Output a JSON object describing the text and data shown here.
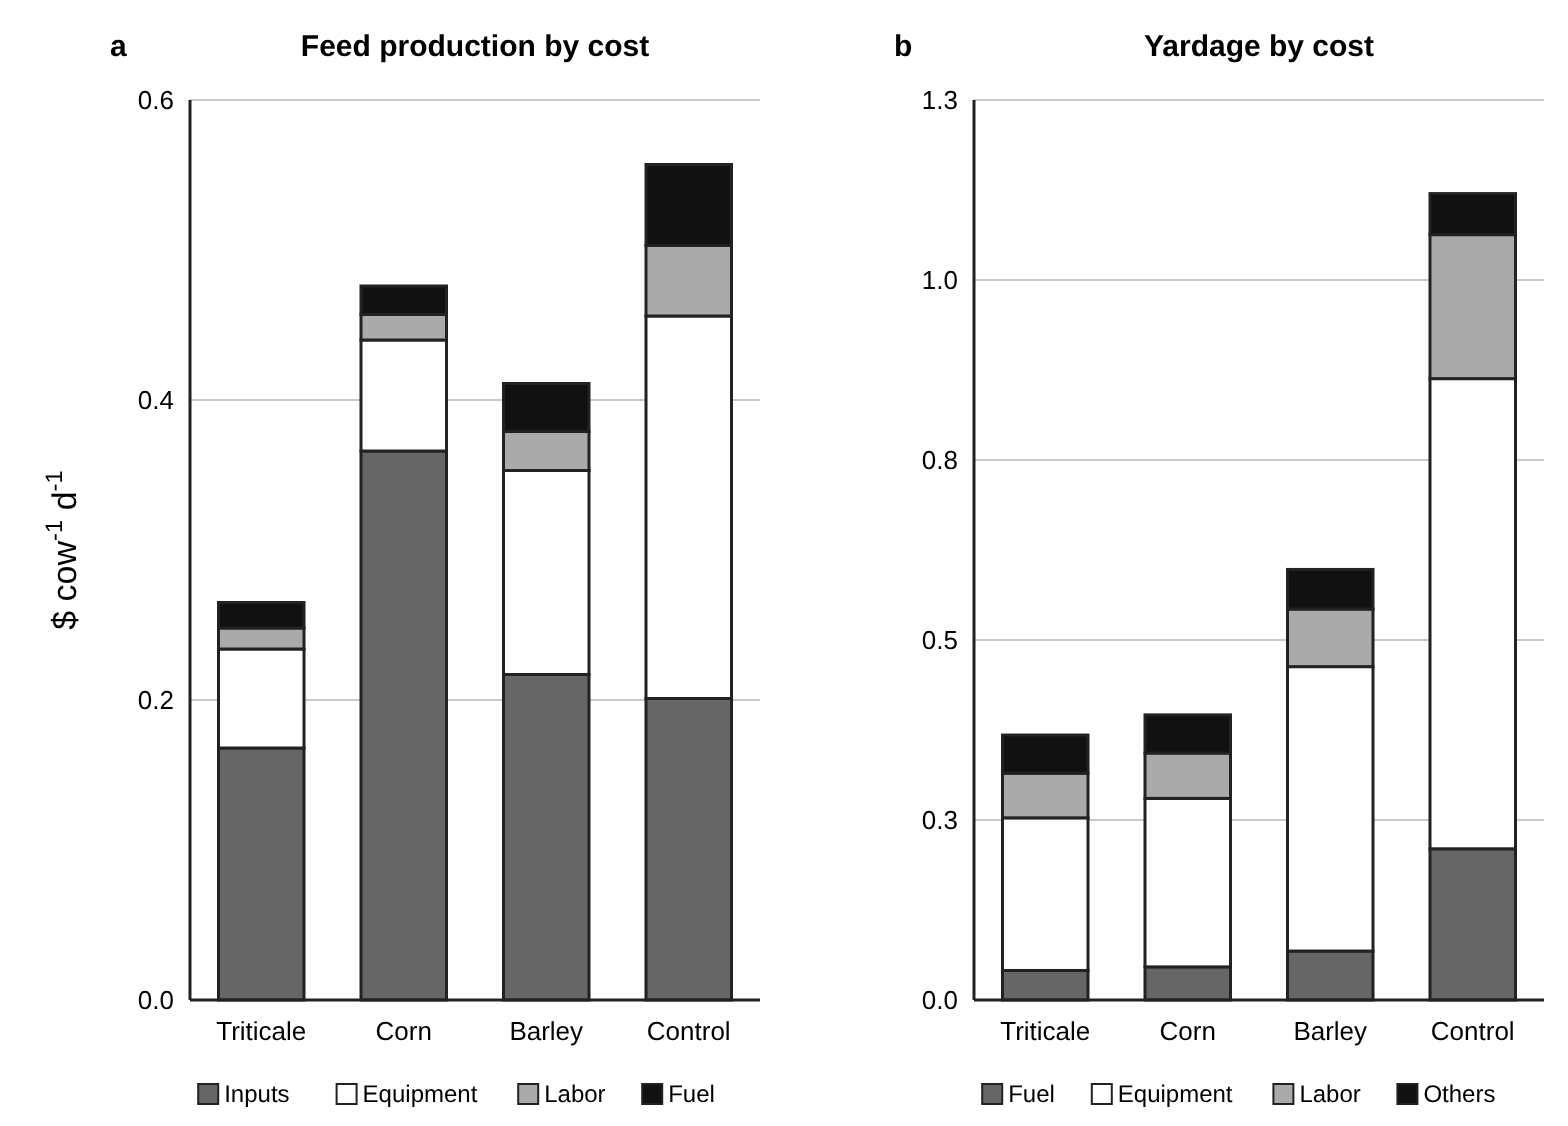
{
  "chart_data": [
    {
      "type": "bar",
      "title": "Feed production by cost",
      "ylabel": "$ cow$^{-1}$ d$^{-1}$",
      "annotations": [
        "a"
      ],
      "categories": [
        "Triticale",
        "Corn",
        "Barley",
        "Control"
      ],
      "stacked": true,
      "ylim": [
        0,
        0.6
      ],
      "yticks": [
        {
          "value": 0,
          "label": "0.0"
        },
        0.2,
        0.4,
        0.6
      ],
      "grid": "y",
      "legend": "bottom",
      "series": [
        {
          "name": "Inputs",
          "color": "#666666",
          "values": [
            0.168,
            0.366,
            0.217,
            0.201
          ]
        },
        {
          "name": "Equipment",
          "color": "#ffffff",
          "values": [
            0.066,
            0.074,
            0.136,
            0.255
          ]
        },
        {
          "name": "Labor",
          "color": "#aaaaaa",
          "values": [
            0.014,
            0.017,
            0.026,
            0.047
          ]
        },
        {
          "name": "Fuel",
          "color": "#111111",
          "values": [
            0.017,
            0.019,
            0.032,
            0.054
          ]
        }
      ]
    },
    {
      "type": "bar",
      "title": "Yardage by cost",
      "annotations": [
        "b"
      ],
      "categories": [
        "Triticale",
        "Corn",
        "Barley",
        "Control"
      ],
      "stacked": true,
      "ylim": [
        0,
        1.25
      ],
      "yticks": [
        {
          "value": 0,
          "label": "0.0"
        },
        {
          "value": 0.25,
          "label": "0.3"
        },
        0.5,
        {
          "value": 0.75,
          "label": "0.8"
        },
        {
          "value": 1,
          "label": "1.0"
        },
        {
          "value": 1.25,
          "label": "1.3"
        }
      ],
      "grid": "y",
      "legend": "bottom",
      "series": [
        {
          "name": "Fuel",
          "color": "#666666",
          "values": [
            0.041,
            0.046,
            0.068,
            0.21
          ]
        },
        {
          "name": "Equipment",
          "color": "#ffffff",
          "values": [
            0.212,
            0.234,
            0.395,
            0.653
          ]
        },
        {
          "name": "Labor",
          "color": "#aaaaaa",
          "values": [
            0.062,
            0.063,
            0.08,
            0.2
          ]
        },
        {
          "name": "Others",
          "color": "#111111",
          "values": [
            0.053,
            0.053,
            0.055,
            0.057
          ]
        }
      ]
    }
  ]
}
